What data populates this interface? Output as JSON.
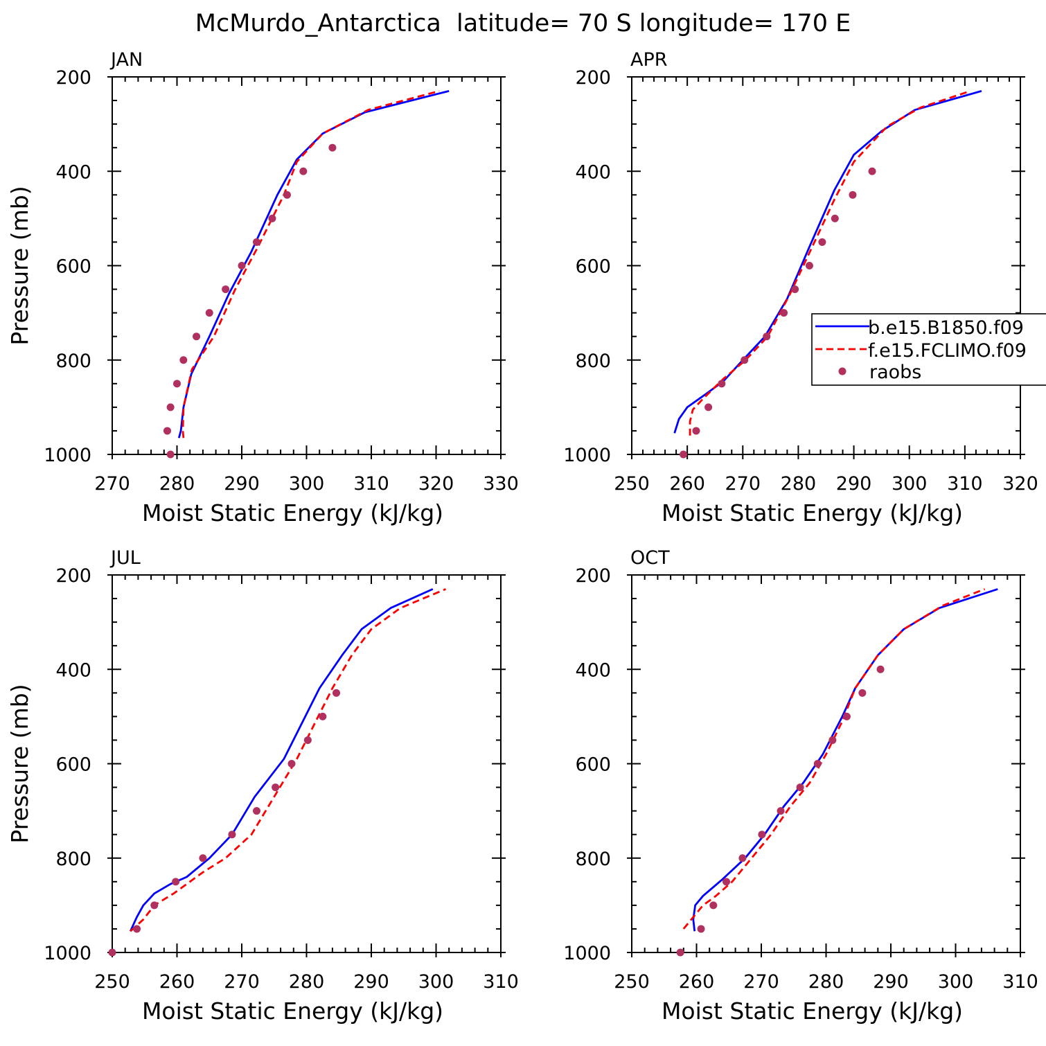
{
  "figure": {
    "title": "McMurdo_Antarctica  latitude= 70 S longitude= 170 E"
  },
  "colors": {
    "b_series": "#0000ff",
    "f_series": "#ff0000",
    "raobs": "#b03060",
    "axes": "#000000"
  },
  "legend": {
    "entries": [
      {
        "label": "b.e15.B1850.f09",
        "style": "solid",
        "color": "#0000ff"
      },
      {
        "label": "f.e15.FCLIMO.f09",
        "style": "dashed",
        "color": "#ff0000"
      },
      {
        "label": "raobs",
        "style": "marker",
        "color": "#b03060"
      }
    ],
    "placement": "APR panel, right side, clipped by image edge"
  },
  "chart_data": [
    {
      "type": "line",
      "title": "JAN",
      "xlabel": "Moist Static Energy (kJ/kg)",
      "ylabel": "Pressure (mb)",
      "xlim": [
        270,
        330
      ],
      "ylim": [
        1000,
        200
      ],
      "y_reversed": true,
      "xticks": [
        "270",
        "280",
        "290",
        "300",
        "310",
        "320",
        "330"
      ],
      "yticks": [
        "200",
        "400",
        "600",
        "800",
        "1000"
      ],
      "series": [
        {
          "name": "b.e15.B1850.f09",
          "style": "solid",
          "points": [
            [
              280.3,
              965
            ],
            [
              280.6,
              950
            ],
            [
              281.0,
              900
            ],
            [
              282.2,
              830
            ],
            [
              285.0,
              750
            ],
            [
              288.0,
              660
            ],
            [
              291.5,
              570
            ],
            [
              295.5,
              450
            ],
            [
              298.5,
              375
            ],
            [
              302.5,
              320
            ],
            [
              309.0,
              275
            ],
            [
              322.0,
              230
            ]
          ]
        },
        {
          "name": "f.e15.FCLIMO.f09",
          "style": "dashed",
          "points": [
            [
              281.0,
              965
            ],
            [
              280.9,
              950
            ],
            [
              281.0,
              900
            ],
            [
              282.3,
              820
            ],
            [
              285.7,
              750
            ],
            [
              289.0,
              650
            ],
            [
              292.5,
              560
            ],
            [
              296.5,
              450
            ],
            [
              298.5,
              380
            ],
            [
              302.5,
              320
            ],
            [
              309.5,
              270
            ],
            [
              320.5,
              230
            ]
          ]
        },
        {
          "name": "raobs",
          "style": "marker",
          "points": [
            [
              279.0,
              1000
            ],
            [
              278.5,
              950
            ],
            [
              279.0,
              900
            ],
            [
              280.0,
              850
            ],
            [
              281.0,
              800
            ],
            [
              283.0,
              750
            ],
            [
              285.0,
              700
            ],
            [
              287.5,
              650
            ],
            [
              290.0,
              600
            ],
            [
              292.3,
              550
            ],
            [
              294.7,
              500
            ],
            [
              297.0,
              450
            ],
            [
              299.5,
              400
            ],
            [
              304.0,
              350
            ]
          ]
        }
      ]
    },
    {
      "type": "line",
      "title": "APR",
      "xlabel": "Moist Static Energy (kJ/kg)",
      "ylabel": "",
      "xlim": [
        250,
        320
      ],
      "ylim": [
        1000,
        200
      ],
      "y_reversed": true,
      "xticks": [
        "250",
        "260",
        "270",
        "280",
        "290",
        "300",
        "310",
        "320"
      ],
      "yticks": [
        "200",
        "400",
        "600",
        "800",
        "1000"
      ],
      "series": [
        {
          "name": "b.e15.B1850.f09",
          "style": "solid",
          "points": [
            [
              257.7,
              955
            ],
            [
              258.5,
              925
            ],
            [
              260.0,
              900
            ],
            [
              263.0,
              875
            ],
            [
              266.5,
              845
            ],
            [
              270.0,
              800
            ],
            [
              274.0,
              750
            ],
            [
              278.0,
              670
            ],
            [
              282.0,
              560
            ],
            [
              286.5,
              440
            ],
            [
              290.0,
              365
            ],
            [
              295.0,
              315
            ],
            [
              301.0,
              270
            ],
            [
              313.0,
              230
            ]
          ]
        },
        {
          "name": "f.e15.FCLIMO.f09",
          "style": "dashed",
          "points": [
            [
              260.5,
              960
            ],
            [
              260.5,
              930
            ],
            [
              261.0,
              905
            ],
            [
              263.0,
              880
            ],
            [
              266.5,
              840
            ],
            [
              270.5,
              800
            ],
            [
              274.5,
              750
            ],
            [
              278.5,
              660
            ],
            [
              282.5,
              560
            ],
            [
              286.5,
              460
            ],
            [
              290.0,
              380
            ],
            [
              296.0,
              305
            ],
            [
              302.0,
              265
            ],
            [
              311.0,
              230
            ]
          ]
        },
        {
          "name": "raobs",
          "style": "marker",
          "points": [
            [
              259.3,
              1000
            ],
            [
              261.6,
              950
            ],
            [
              263.8,
              900
            ],
            [
              266.2,
              850
            ],
            [
              270.3,
              800
            ],
            [
              274.3,
              750
            ],
            [
              277.4,
              700
            ],
            [
              279.4,
              650
            ],
            [
              282.0,
              600
            ],
            [
              284.3,
              550
            ],
            [
              286.6,
              500
            ],
            [
              289.8,
              450
            ],
            [
              293.3,
              400
            ]
          ]
        }
      ]
    },
    {
      "type": "line",
      "title": "JUL",
      "xlabel": "Moist Static Energy (kJ/kg)",
      "ylabel": "Pressure (mb)",
      "xlim": [
        250,
        310
      ],
      "ylim": [
        1000,
        200
      ],
      "y_reversed": true,
      "xticks": [
        "250",
        "260",
        "270",
        "280",
        "290",
        "300",
        "310"
      ],
      "yticks": [
        "200",
        "400",
        "600",
        "800",
        "1000"
      ],
      "series": [
        {
          "name": "b.e15.B1850.f09",
          "style": "solid",
          "points": [
            [
              252.8,
              955
            ],
            [
              253.8,
              925
            ],
            [
              254.8,
              900
            ],
            [
              256.5,
              875
            ],
            [
              259.0,
              855
            ],
            [
              261.5,
              840
            ],
            [
              265.0,
              800
            ],
            [
              268.5,
              750
            ],
            [
              272.0,
              670
            ],
            [
              276.5,
              590
            ],
            [
              282.0,
              440
            ],
            [
              285.5,
              370
            ],
            [
              288.5,
              315
            ],
            [
              293.0,
              270
            ],
            [
              299.5,
              230
            ]
          ]
        },
        {
          "name": "f.e15.FCLIMO.f09",
          "style": "dashed",
          "points": [
            [
              252.8,
              955
            ],
            [
              254.8,
              930
            ],
            [
              256.5,
              900
            ],
            [
              259.5,
              875
            ],
            [
              264.0,
              830
            ],
            [
              267.5,
              800
            ],
            [
              271.5,
              750
            ],
            [
              275.0,
              670
            ],
            [
              278.5,
              590
            ],
            [
              284.0,
              440
            ],
            [
              287.0,
              370
            ],
            [
              290.0,
              315
            ],
            [
              294.5,
              270
            ],
            [
              301.5,
              230
            ]
          ]
        },
        {
          "name": "raobs",
          "style": "marker",
          "points": [
            [
              250.0,
              1000
            ],
            [
              253.8,
              950
            ],
            [
              256.5,
              900
            ],
            [
              259.8,
              850
            ],
            [
              264.0,
              800
            ],
            [
              268.5,
              750
            ],
            [
              272.3,
              700
            ],
            [
              275.2,
              650
            ],
            [
              277.7,
              600
            ],
            [
              280.2,
              550
            ],
            [
              282.5,
              500
            ],
            [
              284.6,
              450
            ]
          ]
        }
      ]
    },
    {
      "type": "line",
      "title": "OCT",
      "xlabel": "Moist Static Energy (kJ/kg)",
      "ylabel": "",
      "xlim": [
        250,
        310
      ],
      "ylim": [
        1000,
        200
      ],
      "y_reversed": true,
      "xticks": [
        "250",
        "260",
        "270",
        "280",
        "290",
        "300",
        "310"
      ],
      "yticks": [
        "200",
        "400",
        "600",
        "800",
        "1000"
      ],
      "series": [
        {
          "name": "b.e15.B1850.f09",
          "style": "solid",
          "points": [
            [
              259.7,
              955
            ],
            [
              259.5,
              930
            ],
            [
              259.8,
              900
            ],
            [
              261.0,
              880
            ],
            [
              264.0,
              845
            ],
            [
              267.5,
              800
            ],
            [
              270.5,
              750
            ],
            [
              273.5,
              690
            ],
            [
              276.5,
              640
            ],
            [
              279.5,
              580
            ],
            [
              282.5,
              500
            ],
            [
              284.5,
              440
            ],
            [
              288.0,
              370
            ],
            [
              292.0,
              315
            ],
            [
              297.5,
              270
            ],
            [
              306.5,
              230
            ]
          ]
        },
        {
          "name": "f.e15.FCLIMO.f09",
          "style": "dashed",
          "points": [
            [
              258.0,
              950
            ],
            [
              259.5,
              925
            ],
            [
              261.0,
              900
            ],
            [
              263.0,
              880
            ],
            [
              265.5,
              850
            ],
            [
              268.5,
              800
            ],
            [
              271.5,
              750
            ],
            [
              274.5,
              690
            ],
            [
              277.5,
              640
            ],
            [
              280.0,
              580
            ],
            [
              282.5,
              510
            ],
            [
              284.5,
              440
            ],
            [
              288.0,
              370
            ],
            [
              292.0,
              315
            ],
            [
              298.0,
              265
            ],
            [
              304.5,
              230
            ]
          ]
        },
        {
          "name": "raobs",
          "style": "marker",
          "points": [
            [
              257.5,
              1000
            ],
            [
              260.7,
              950
            ],
            [
              262.6,
              900
            ],
            [
              264.6,
              850
            ],
            [
              267.1,
              800
            ],
            [
              270.1,
              750
            ],
            [
              273.0,
              700
            ],
            [
              276.0,
              650
            ],
            [
              278.7,
              600
            ],
            [
              281.0,
              550
            ],
            [
              283.2,
              500
            ],
            [
              285.6,
              450
            ],
            [
              288.4,
              400
            ]
          ]
        }
      ]
    }
  ]
}
